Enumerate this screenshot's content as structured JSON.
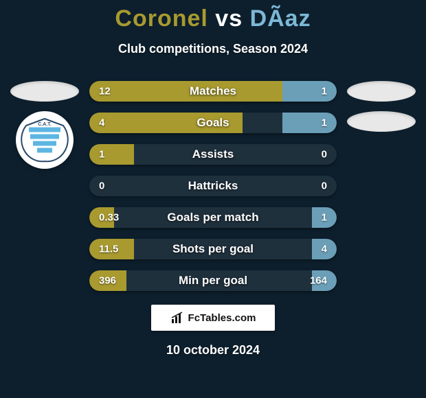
{
  "background_color": "#0d1f2d",
  "title": {
    "player1": "Coronel",
    "player2": "DÃ­az",
    "vs": "vs",
    "color_p1": "#a89a2f",
    "color_p2": "#7db8d6",
    "fontsize": 34
  },
  "subtitle": "Club competitions, Season 2024",
  "stats": {
    "label_color": "#ffffff",
    "player1_color": "#a89a2f",
    "player2_color": "#6b9fb8",
    "track_color": "rgba(255,255,255,0.08)",
    "rows": [
      {
        "label": "Matches",
        "v1": "12",
        "v2": "1",
        "w1": 0.78,
        "w2": 0.22
      },
      {
        "label": "Goals",
        "v1": "4",
        "v2": "1",
        "w1": 0.62,
        "w2": 0.22
      },
      {
        "label": "Assists",
        "v1": "1",
        "v2": "0",
        "w1": 0.18,
        "w2": 0.0
      },
      {
        "label": "Hattricks",
        "v1": "0",
        "v2": "0",
        "w1": 0.0,
        "w2": 0.0
      },
      {
        "label": "Goals per match",
        "v1": "0.33",
        "v2": "1",
        "w1": 0.1,
        "w2": 0.1
      },
      {
        "label": "Shots per goal",
        "v1": "11.5",
        "v2": "4",
        "w1": 0.18,
        "w2": 0.1
      },
      {
        "label": "Min per goal",
        "v1": "396",
        "v2": "164",
        "w1": 0.15,
        "w2": 0.1
      }
    ]
  },
  "footer": {
    "brand": "FcTables.com",
    "date": "10 october 2024"
  },
  "club_logo": {
    "bg": "#ffffff",
    "stripe": "#5db6e2",
    "text": "C.A.T."
  }
}
